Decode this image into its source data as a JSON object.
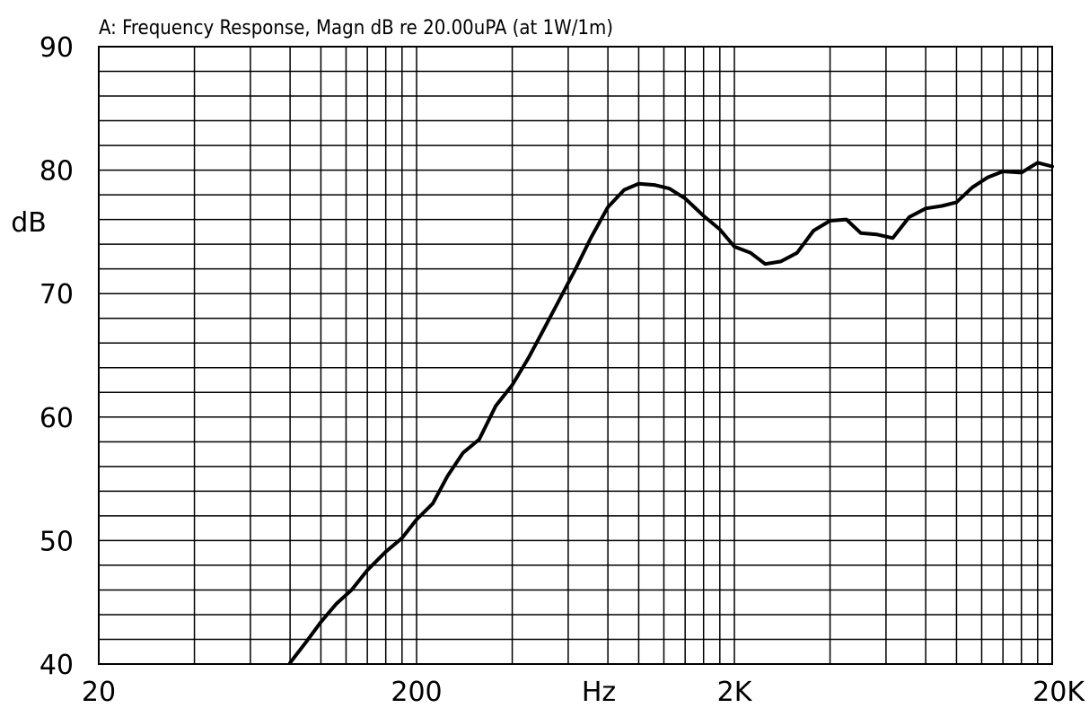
{
  "chart_data": {
    "type": "line",
    "title": "A: Frequency Response, Magn dB re 20.00uPA  (at 1W/1m)",
    "xlabel": "Hz",
    "ylabel": "dB",
    "x_scale": "log",
    "xlim": [
      20,
      20000
    ],
    "ylim": [
      40,
      90
    ],
    "x_tick_labels": [
      {
        "value": 20,
        "label": "20"
      },
      {
        "value": 200,
        "label": "200"
      },
      {
        "value": 2000,
        "label": "2K"
      },
      {
        "value": 20000,
        "label": "20K"
      }
    ],
    "y_ticks": [
      40,
      50,
      60,
      70,
      80,
      90
    ],
    "grid": true,
    "series": [
      {
        "x": [
          80,
          90,
          100,
          112,
          125,
          140,
          160,
          180,
          200,
          225,
          250,
          280,
          315,
          355,
          400,
          450,
          500,
          560,
          630,
          710,
          800,
          900,
          1000,
          1120,
          1250,
          1400,
          1600,
          1800,
          2000,
          2250,
          2500,
          2800,
          3150,
          3550,
          4000,
          4500,
          5000,
          5600,
          6300,
          7100,
          8000,
          9000,
          10000,
          11200,
          12500,
          14000,
          16000,
          18000,
          20000
        ],
        "y": [
          40.1,
          41.8,
          43.4,
          44.9,
          46.0,
          47.6,
          49.1,
          50.2,
          51.7,
          53.0,
          55.2,
          57.1,
          58.2,
          60.9,
          62.6,
          64.8,
          67.0,
          69.4,
          71.9,
          74.6,
          77.0,
          78.4,
          78.9,
          78.8,
          78.5,
          77.7,
          76.3,
          75.2,
          73.8,
          73.3,
          72.4,
          72.6,
          73.3,
          75.1,
          75.9,
          76.0,
          74.9,
          74.8,
          74.5,
          76.2,
          76.9,
          77.1,
          77.4,
          78.6,
          79.4,
          79.9,
          79.8,
          80.6,
          80.3
        ]
      }
    ]
  }
}
